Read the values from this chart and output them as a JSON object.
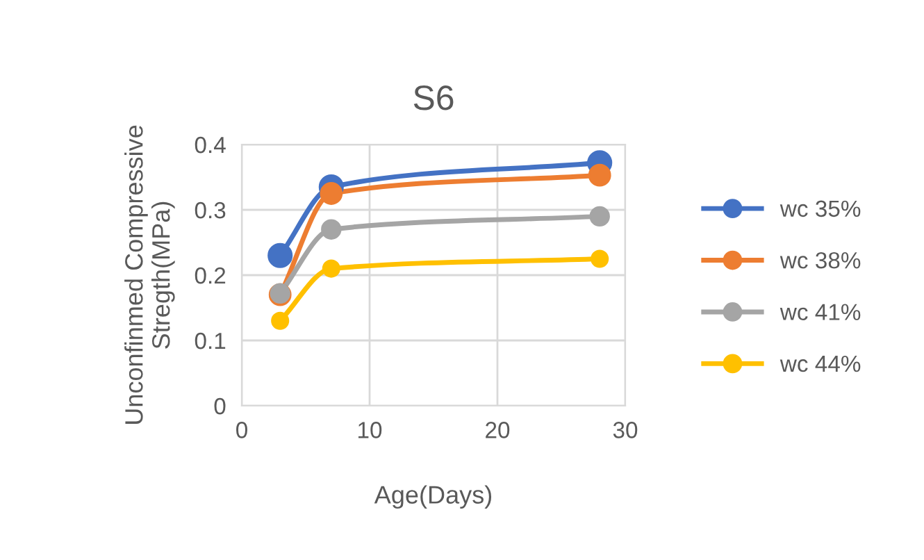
{
  "chart_data": {
    "type": "line",
    "title": "S6",
    "xlabel": "Age(Days)",
    "ylabel": "Unconfinmed Compressive\nStregth(MPa)",
    "xlim": [
      0,
      30
    ],
    "xticks": [
      0,
      10,
      20,
      30
    ],
    "ylim": [
      0,
      0.4
    ],
    "yticks": [
      0,
      0.1,
      0.2,
      0.3,
      0.4
    ],
    "grid": true,
    "legend": "right",
    "marker": "circle",
    "line_style": "solid",
    "series": [
      {
        "name": "wc 35%",
        "color": "#4472c4",
        "x": [
          3,
          7,
          28
        ],
        "values": [
          0.23,
          0.335,
          0.372
        ]
      },
      {
        "name": "wc 38%",
        "color": "#ed7d31",
        "x": [
          3,
          7,
          28
        ],
        "values": [
          0.17,
          0.325,
          0.353
        ]
      },
      {
        "name": "wc 41%",
        "color": "#a5a5a5",
        "x": [
          3,
          7,
          28
        ],
        "values": [
          0.172,
          0.27,
          0.29
        ]
      },
      {
        "name": "wc 44%",
        "color": "#ffc000",
        "x": [
          3,
          7,
          28
        ],
        "values": [
          0.13,
          0.21,
          0.225
        ]
      }
    ]
  }
}
